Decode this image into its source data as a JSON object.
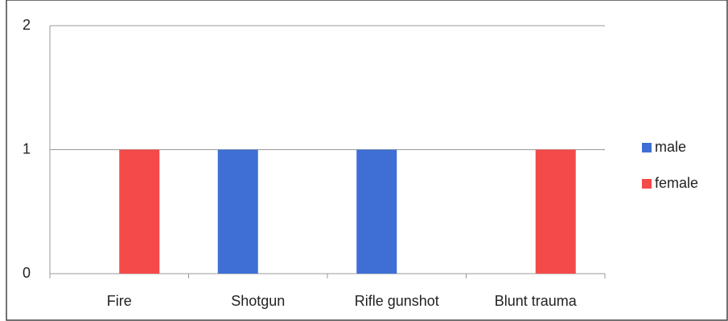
{
  "chart_data": {
    "type": "bar",
    "categories": [
      "Fire",
      "Shotgun",
      "Rifle gunshot",
      "Blunt trauma"
    ],
    "series": [
      {
        "name": "male",
        "color": "#3f6fd4",
        "values": [
          0,
          1,
          1,
          0
        ]
      },
      {
        "name": "female",
        "color": "#f54a4a",
        "values": [
          1,
          0,
          0,
          1
        ]
      }
    ],
    "ylim": [
      0,
      2
    ],
    "yticks": [
      0,
      1,
      2
    ],
    "grid": true,
    "legend": "right"
  }
}
